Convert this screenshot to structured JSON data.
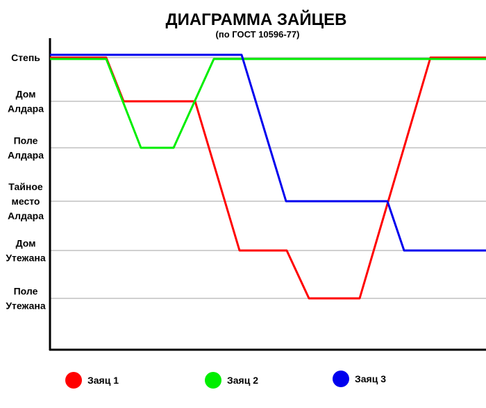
{
  "chart_data": {
    "type": "line",
    "title": "ДИАГРАММА ЗАЙЦЕВ",
    "subtitle": "(по ГОСТ 10596-77)",
    "y_categories": [
      [
        "Степь"
      ],
      [
        "Дом",
        "Алдара"
      ],
      [
        "Поле",
        "Алдара"
      ],
      [
        "Тайное",
        "место",
        "Алдара"
      ],
      [
        "Дом",
        "Утежана"
      ],
      [
        "Поле",
        "Утежана"
      ]
    ],
    "grid": true,
    "legend_position": "bottom",
    "series": [
      {
        "name": "Заяц 1",
        "color": "#ff0000",
        "points": [
          [
            0,
            0
          ],
          [
            81,
            0
          ],
          [
            106,
            1
          ],
          [
            209,
            1
          ],
          [
            273,
            4
          ],
          [
            341,
            4
          ],
          [
            373,
            5
          ],
          [
            446,
            5
          ],
          [
            548,
            0
          ],
          [
            630,
            0
          ]
        ]
      },
      {
        "name": "Заяц 2",
        "color": "#00ee00",
        "points": [
          [
            0,
            0
          ],
          [
            81,
            0
          ],
          [
            131,
            2
          ],
          [
            178,
            2
          ],
          [
            236,
            0
          ],
          [
            630,
            0
          ]
        ]
      },
      {
        "name": "Заяц 3",
        "color": "#0000ee",
        "points": [
          [
            0,
            0
          ],
          [
            276,
            0
          ],
          [
            340,
            3
          ],
          [
            486,
            3
          ],
          [
            510,
            4
          ],
          [
            630,
            4
          ]
        ]
      }
    ]
  }
}
